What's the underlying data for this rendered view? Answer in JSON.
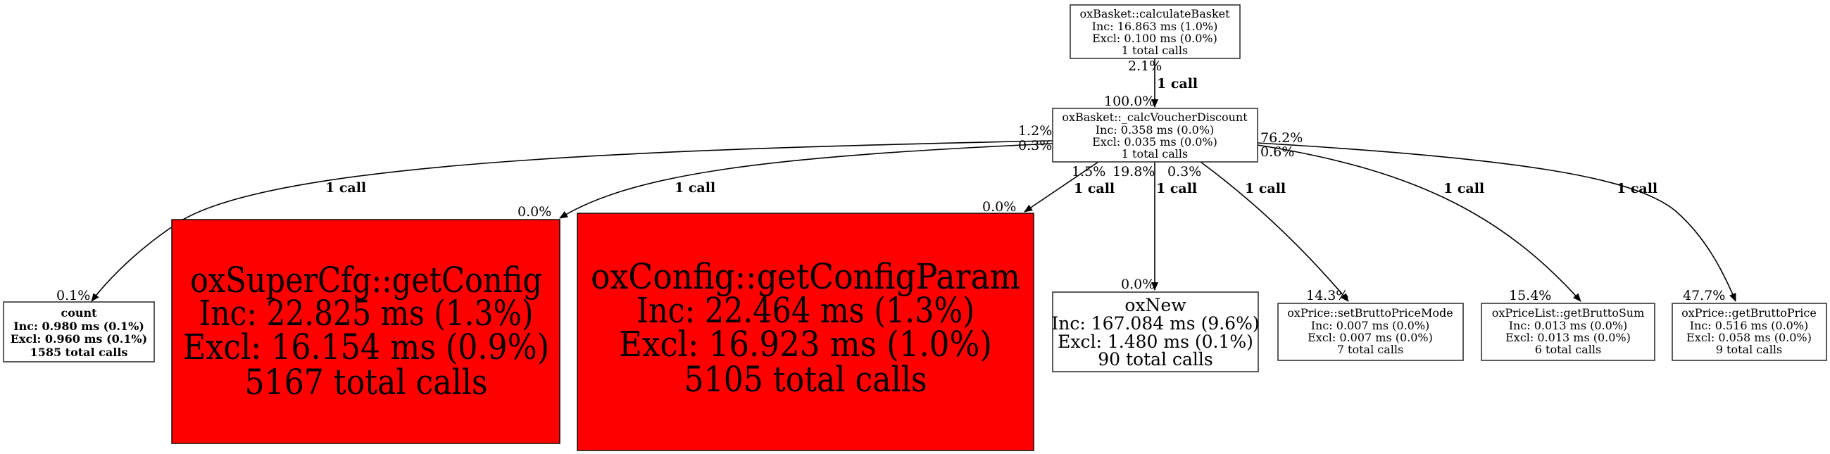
{
  "colors": {
    "hot_node": "#ff0000",
    "node": "#ffffff",
    "edge": "#000000"
  },
  "nodes": {
    "calculateBasket": {
      "name": "oxBasket::calculateBasket",
      "inc": "Inc: 16.863 ms (1.0%)",
      "excl": "Excl: 0.100 ms (0.0%)",
      "calls": "1 total calls"
    },
    "calcVoucherDiscount": {
      "name": "oxBasket::_calcVoucherDiscount",
      "inc": "Inc: 0.358 ms (0.0%)",
      "excl": "Excl: 0.035 ms (0.0%)",
      "calls": "1 total calls"
    },
    "count": {
      "name": "count",
      "inc": "Inc: 0.980 ms (0.1%)",
      "excl": "Excl: 0.960 ms (0.1%)",
      "calls": "1585 total calls"
    },
    "getConfig": {
      "name": "oxSuperCfg::getConfig",
      "inc": "Inc: 22.825 ms (1.3%)",
      "excl": "Excl: 16.154 ms (0.9%)",
      "calls": "5167 total calls",
      "hot": true
    },
    "getConfigParam": {
      "name": "oxConfig::getConfigParam",
      "inc": "Inc: 22.464 ms (1.3%)",
      "excl": "Excl: 16.923 ms (1.0%)",
      "calls": "5105 total calls",
      "hot": true
    },
    "oxNew": {
      "name": "oxNew",
      "inc": "Inc: 167.084 ms (9.6%)",
      "excl": "Excl: 1.480 ms (0.1%)",
      "calls": "90 total calls"
    },
    "setBruttoPriceMode": {
      "name": "oxPrice::setBruttoPriceMode",
      "inc": "Inc: 0.007 ms (0.0%)",
      "excl": "Excl: 0.007 ms (0.0%)",
      "calls": "7 total calls"
    },
    "getBruttoSum": {
      "name": "oxPriceList::getBruttoSum",
      "inc": "Inc: 0.013 ms (0.0%)",
      "excl": "Excl: 0.013 ms (0.0%)",
      "calls": "6 total calls"
    },
    "getBruttoPrice": {
      "name": "oxPrice::getBruttoPrice",
      "inc": "Inc: 0.516 ms (0.0%)",
      "excl": "Excl: 0.058 ms (0.0%)",
      "calls": "9 total calls"
    }
  },
  "edges": {
    "calc_to_voucher": {
      "from": "calculateBasket",
      "to": "calcVoucherDiscount",
      "label": "1 call",
      "tail": "2.1%",
      "head": "100.0%"
    },
    "voucher_to_count": {
      "from": "calcVoucherDiscount",
      "to": "count",
      "label": "1 call",
      "tail": "1.2%",
      "head": "0.1%"
    },
    "voucher_to_getConfig": {
      "from": "calcVoucherDiscount",
      "to": "getConfig",
      "label": "1 call",
      "tail": "0.3%",
      "head": "0.0%"
    },
    "voucher_to_getConfigParam": {
      "from": "calcVoucherDiscount",
      "to": "getConfigParam",
      "label": "1 call",
      "tail": "1.5%",
      "head": "0.0%"
    },
    "voucher_to_oxNew": {
      "from": "calcVoucherDiscount",
      "to": "oxNew",
      "label": "1 call",
      "tail": "19.8%",
      "head": "0.0%"
    },
    "voucher_to_setBruttoPriceMode": {
      "from": "calcVoucherDiscount",
      "to": "setBruttoPriceMode",
      "label": "1 call",
      "tail": "0.3%",
      "head": "14.3%"
    },
    "voucher_to_getBruttoSum": {
      "from": "calcVoucherDiscount",
      "to": "getBruttoSum",
      "label": "1 call",
      "tail": "0.6%",
      "head": "15.4%"
    },
    "voucher_to_getBruttoPrice": {
      "from": "calcVoucherDiscount",
      "to": "getBruttoPrice",
      "label": "1 call",
      "tail": "76.2%",
      "head": "47.7%"
    }
  }
}
